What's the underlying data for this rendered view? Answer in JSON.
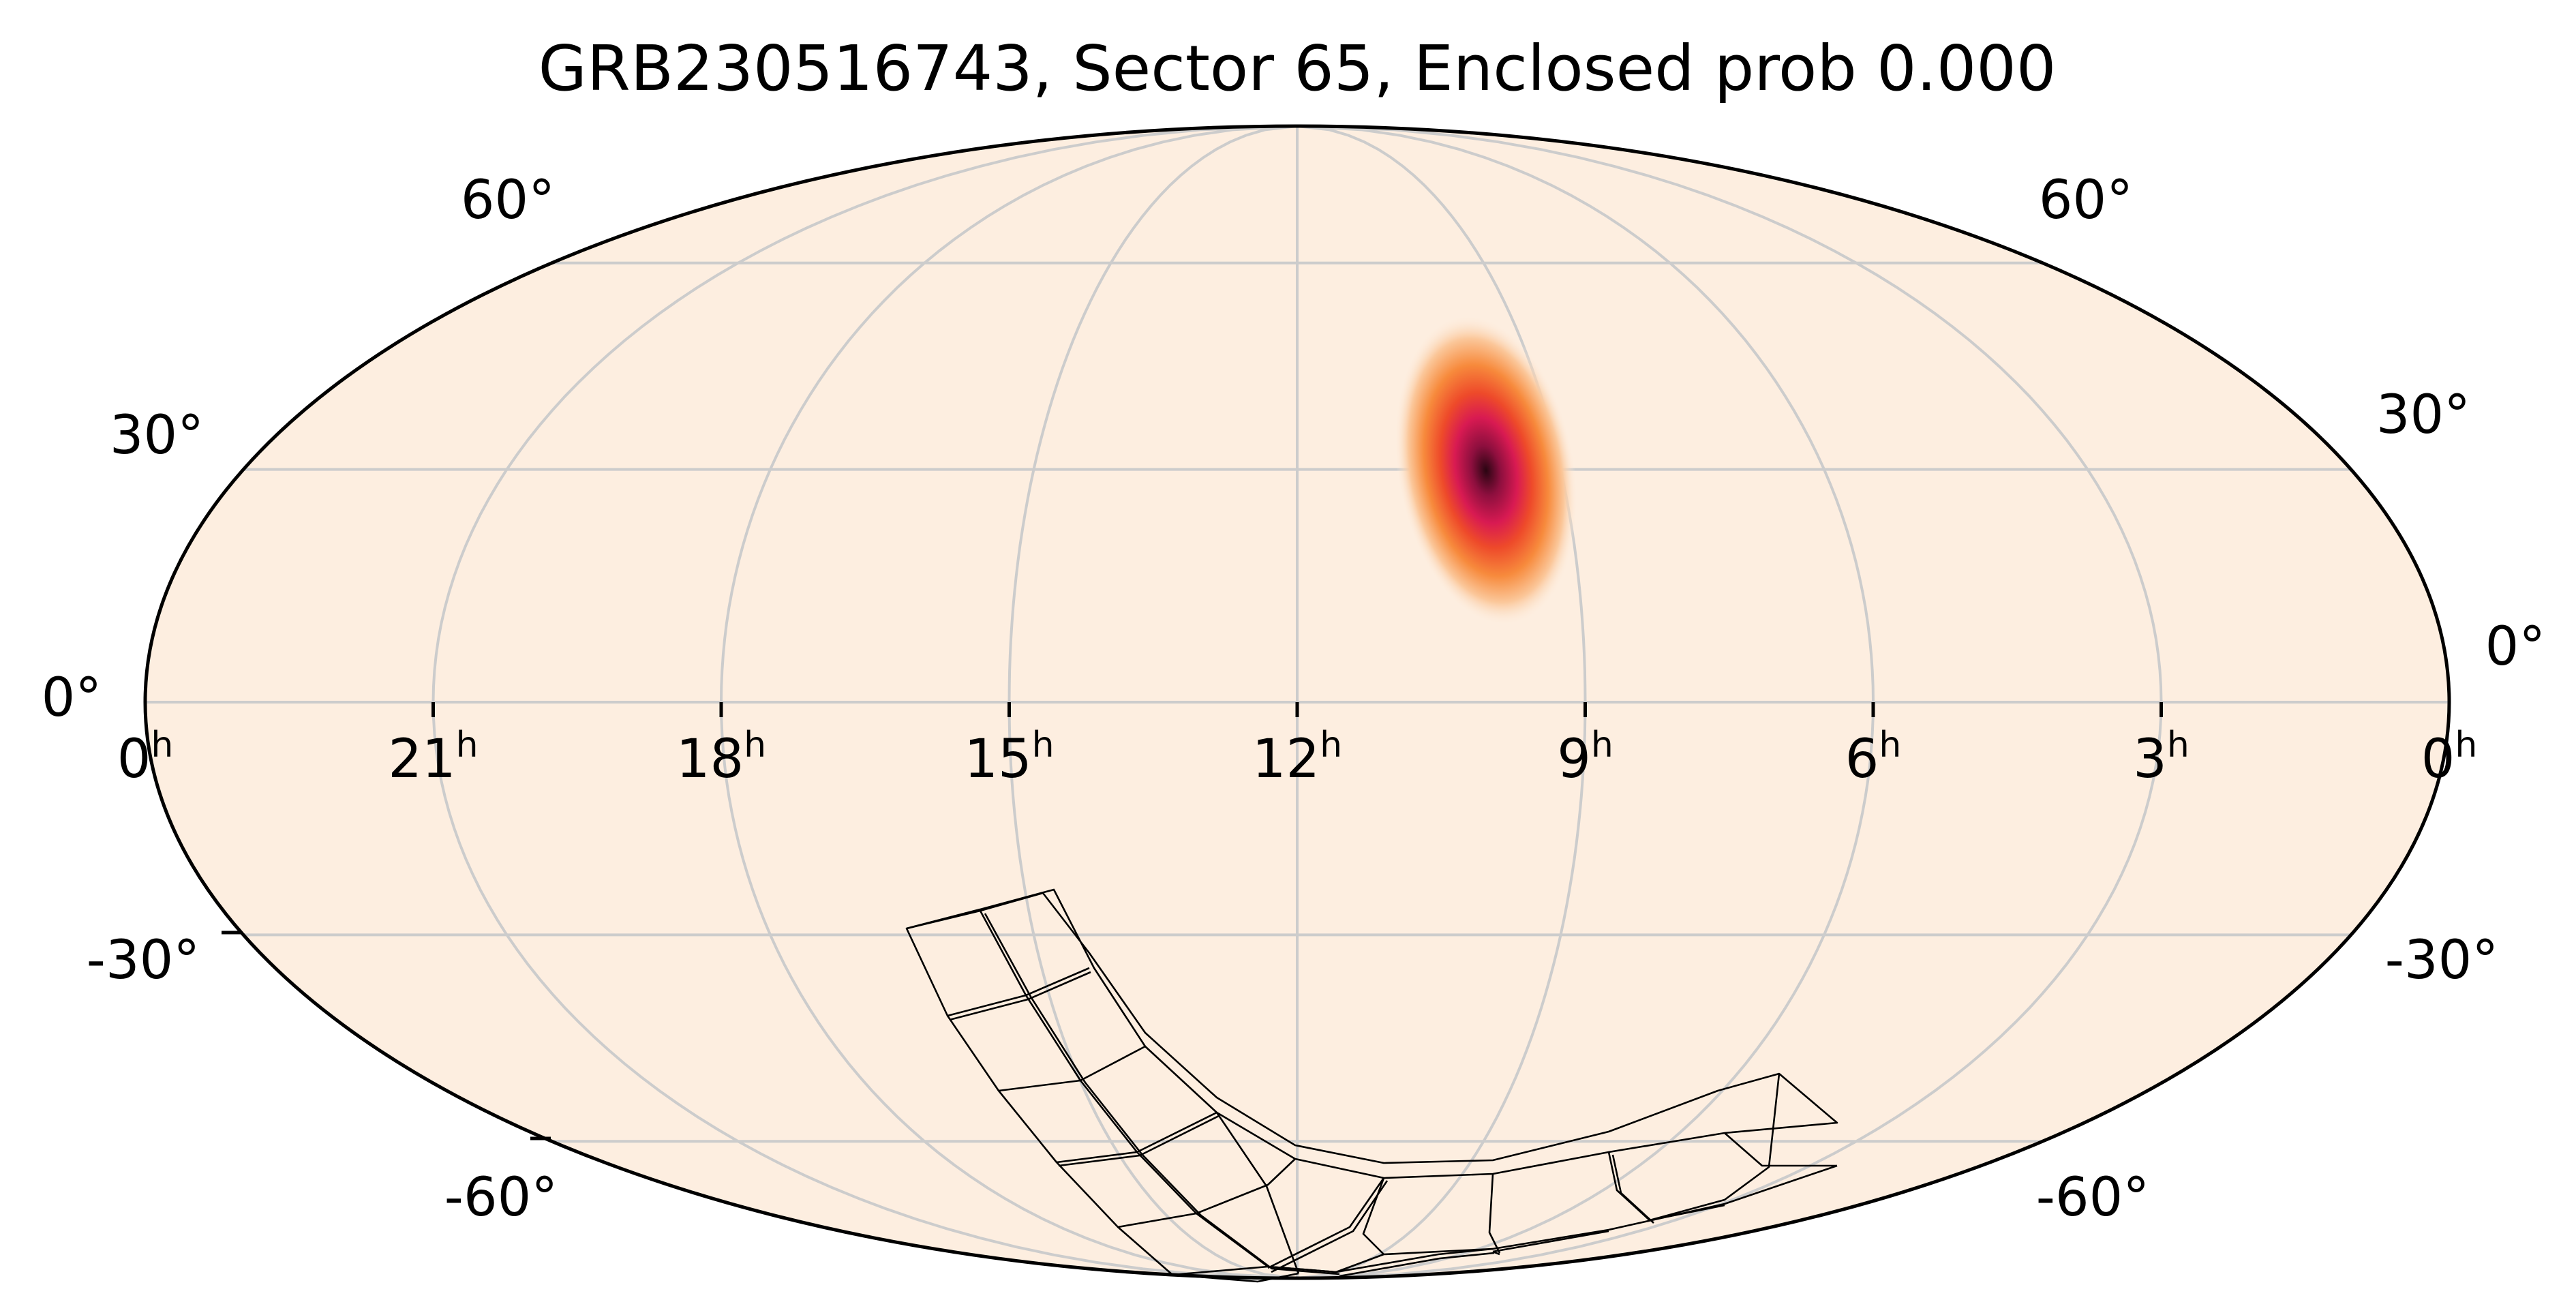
{
  "title": "GRB230516743, Sector 65, Enclosed prob 0.000",
  "projection": "Mollweide",
  "colors": {
    "background": "#fdeee0",
    "grid": "#cccccc",
    "outline": "#000000",
    "footprint": "#000000",
    "blob_colormap": [
      "#fdeee0",
      "#fbc79a",
      "#f78a3c",
      "#ee4a2a",
      "#d81a52",
      "#8d0f3e",
      "#2a0512"
    ]
  },
  "ra_labels": [
    {
      "hours": "0",
      "sup": "h"
    },
    {
      "hours": "21",
      "sup": "h"
    },
    {
      "hours": "18",
      "sup": "h"
    },
    {
      "hours": "15",
      "sup": "h"
    },
    {
      "hours": "12",
      "sup": "h"
    },
    {
      "hours": "9",
      "sup": "h"
    },
    {
      "hours": "6",
      "sup": "h"
    },
    {
      "hours": "3",
      "sup": "h"
    },
    {
      "hours": "0",
      "sup": "h"
    }
  ],
  "dec_labels": [
    "60°",
    "30°",
    "0°",
    "-30°",
    "-60°"
  ],
  "chart_data": {
    "type": "heatmap",
    "description_free": true,
    "localization": {
      "ra_hours": 9.7,
      "dec_deg": 25
    },
    "ra_grid_hours": [
      0,
      21,
      18,
      15,
      12,
      9,
      6,
      3,
      0
    ],
    "dec_grid_deg": [
      60,
      30,
      0,
      -30,
      -60
    ],
    "enclosed_prob": 0.0,
    "sector": 65
  }
}
